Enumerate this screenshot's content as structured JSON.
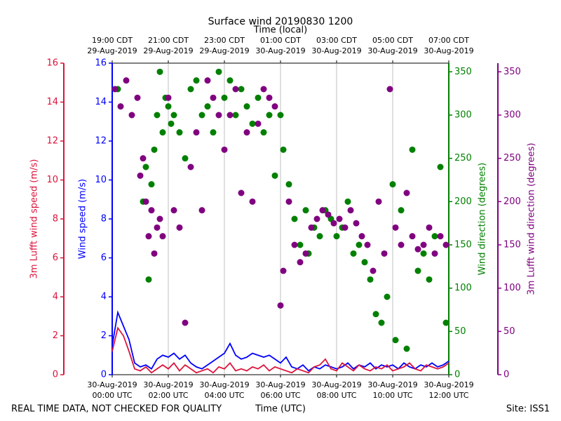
{
  "chart_data": {
    "type": "multi-axis-time",
    "title": "Surface wind 20190830 1200",
    "top_axis_label": "Time (local)",
    "x_label": "Time (UTC)",
    "footer_left": "REAL TIME DATA, NOT CHECKED FOR QUALITY",
    "footer_right": "Site: ISS1",
    "xlim": [
      0,
      12
    ],
    "grid": true,
    "xticks": [
      {
        "value": 0,
        "label": [
          "30-Aug-2019",
          "00:00 UTC"
        ]
      },
      {
        "value": 2,
        "label": [
          "30-Aug-2019",
          "02:00 UTC"
        ]
      },
      {
        "value": 4,
        "label": [
          "30-Aug-2019",
          "04:00 UTC"
        ]
      },
      {
        "value": 6,
        "label": [
          "30-Aug-2019",
          "06:00 UTC"
        ]
      },
      {
        "value": 8,
        "label": [
          "30-Aug-2019",
          "08:00 UTC"
        ]
      },
      {
        "value": 10,
        "label": [
          "30-Aug-2019",
          "10:00 UTC"
        ]
      },
      {
        "value": 12,
        "label": [
          "30-Aug-2019",
          "12:00 UTC"
        ]
      }
    ],
    "top_ticks": [
      {
        "value": 0,
        "label": [
          "19:00 CDT",
          "29-Aug-2019"
        ]
      },
      {
        "value": 2,
        "label": [
          "21:00 CDT",
          "29-Aug-2019"
        ]
      },
      {
        "value": 4,
        "label": [
          "23:00 CDT",
          "29-Aug-2019"
        ]
      },
      {
        "value": 6,
        "label": [
          "01:00 CDT",
          "30-Aug-2019"
        ]
      },
      {
        "value": 8,
        "label": [
          "03:00 CDT",
          "30-Aug-2019"
        ]
      },
      {
        "value": 10,
        "label": [
          "05:00 CDT",
          "30-Aug-2019"
        ]
      },
      {
        "value": 12,
        "label": [
          "07:00 CDT",
          "30-Aug-2019"
        ]
      }
    ],
    "axes": [
      {
        "label": "3m Lufft wind speed (m/s)",
        "color": "#dc143c",
        "lim": [
          0,
          16
        ],
        "ticks": [
          0,
          2,
          4,
          6,
          8,
          10,
          12,
          14,
          16
        ]
      },
      {
        "label": "Wind speed (m/s)",
        "color": "#0000ff",
        "lim": [
          0,
          16
        ],
        "ticks": [
          0,
          2,
          4,
          6,
          8,
          10,
          12,
          14,
          16
        ]
      },
      {
        "label": "Wind direction (degrees)",
        "color": "#008000",
        "lim": [
          0,
          360
        ],
        "ticks": [
          0,
          50,
          100,
          150,
          200,
          250,
          300,
          350
        ]
      },
      {
        "label": "3m Lufft wind direction (degrees)",
        "color": "#800080",
        "lim": [
          0,
          360
        ],
        "ticks": [
          0,
          50,
          100,
          150,
          200,
          250,
          300,
          350
        ]
      }
    ],
    "series": [
      {
        "axis": 2,
        "kind": "scatter",
        "color": "#008000",
        "x": [
          0.2,
          1.1,
          1.2,
          1.3,
          1.4,
          1.5,
          1.6,
          1.7,
          1.8,
          1.9,
          2.0,
          2.1,
          2.2,
          2.4,
          2.6,
          2.8,
          3.0,
          3.2,
          3.4,
          3.6,
          3.8,
          4.0,
          4.2,
          4.4,
          4.6,
          4.8,
          5.0,
          5.2,
          5.4,
          5.6,
          5.8,
          6.0,
          6.1,
          6.3,
          6.5,
          6.7,
          6.9,
          7.0,
          7.2,
          7.4,
          7.6,
          7.8,
          8.0,
          8.2,
          8.4,
          8.6,
          8.8,
          9.0,
          9.2,
          9.4,
          9.6,
          9.8,
          10.0,
          10.1,
          10.3,
          10.5,
          10.7,
          10.9,
          11.1,
          11.3,
          11.5,
          11.7,
          11.9
        ],
        "values": [
          330,
          200,
          240,
          110,
          220,
          260,
          300,
          350,
          280,
          320,
          310,
          290,
          300,
          280,
          250,
          330,
          340,
          300,
          310,
          280,
          350,
          320,
          340,
          300,
          330,
          310,
          290,
          320,
          280,
          300,
          230,
          300,
          260,
          220,
          180,
          150,
          190,
          140,
          170,
          160,
          190,
          180,
          160,
          170,
          200,
          140,
          150,
          130,
          110,
          70,
          60,
          90,
          220,
          40,
          190,
          30,
          260,
          120,
          140,
          110,
          160,
          240,
          60
        ]
      },
      {
        "axis": 3,
        "kind": "scatter",
        "color": "#800080",
        "x": [
          0.1,
          0.3,
          0.5,
          0.7,
          0.9,
          1.0,
          1.1,
          1.2,
          1.3,
          1.4,
          1.5,
          1.6,
          1.7,
          1.8,
          2.0,
          2.2,
          2.4,
          2.6,
          2.8,
          3.0,
          3.2,
          3.4,
          3.6,
          3.8,
          4.0,
          4.2,
          4.4,
          4.6,
          4.8,
          5.0,
          5.2,
          5.4,
          5.6,
          5.8,
          6.0,
          6.1,
          6.3,
          6.5,
          6.7,
          6.9,
          7.1,
          7.3,
          7.5,
          7.7,
          7.9,
          8.1,
          8.3,
          8.5,
          8.7,
          8.9,
          9.1,
          9.3,
          9.5,
          9.7,
          9.9,
          10.1,
          10.3,
          10.5,
          10.7,
          10.9,
          11.1,
          11.3,
          11.5,
          11.7,
          11.9
        ],
        "values": [
          330,
          310,
          340,
          300,
          320,
          230,
          250,
          200,
          160,
          190,
          140,
          170,
          180,
          160,
          320,
          190,
          170,
          60,
          240,
          280,
          190,
          340,
          320,
          300,
          260,
          300,
          330,
          210,
          280,
          200,
          290,
          330,
          320,
          310,
          80,
          120,
          200,
          150,
          130,
          140,
          170,
          180,
          190,
          185,
          175,
          180,
          170,
          190,
          175,
          160,
          150,
          120,
          200,
          140,
          330,
          170,
          150,
          210,
          160,
          145,
          150,
          170,
          140,
          160,
          150
        ]
      },
      {
        "axis": 1,
        "kind": "line",
        "color": "#0000ff",
        "x": [
          0,
          0.2,
          0.4,
          0.6,
          0.8,
          1.0,
          1.2,
          1.4,
          1.6,
          1.8,
          2.0,
          2.2,
          2.4,
          2.6,
          2.8,
          3.0,
          3.2,
          3.4,
          3.6,
          3.8,
          4.0,
          4.2,
          4.4,
          4.6,
          4.8,
          5.0,
          5.2,
          5.4,
          5.6,
          5.8,
          6.0,
          6.2,
          6.4,
          6.6,
          6.8,
          7.0,
          7.2,
          7.4,
          7.6,
          7.8,
          8.0,
          8.2,
          8.4,
          8.6,
          8.8,
          9.0,
          9.2,
          9.4,
          9.6,
          9.8,
          10.0,
          10.2,
          10.4,
          10.6,
          10.8,
          11.0,
          11.2,
          11.4,
          11.6,
          11.8,
          12.0
        ],
        "values": [
          1.5,
          3.2,
          2.5,
          1.8,
          0.6,
          0.4,
          0.5,
          0.3,
          0.8,
          1.0,
          0.9,
          1.1,
          0.8,
          1.0,
          0.6,
          0.4,
          0.3,
          0.5,
          0.7,
          0.9,
          1.1,
          1.6,
          1.0,
          0.8,
          0.9,
          1.1,
          1.0,
          0.9,
          1.0,
          0.8,
          0.6,
          0.9,
          0.4,
          0.3,
          0.5,
          0.2,
          0.4,
          0.3,
          0.5,
          0.4,
          0.3,
          0.4,
          0.6,
          0.3,
          0.5,
          0.4,
          0.6,
          0.3,
          0.5,
          0.4,
          0.5,
          0.3,
          0.6,
          0.4,
          0.3,
          0.5,
          0.4,
          0.6,
          0.4,
          0.5,
          0.7
        ]
      },
      {
        "axis": 0,
        "kind": "line",
        "color": "#dc143c",
        "x": [
          0,
          0.2,
          0.4,
          0.6,
          0.8,
          1.0,
          1.2,
          1.4,
          1.6,
          1.8,
          2.0,
          2.2,
          2.4,
          2.6,
          2.8,
          3.0,
          3.2,
          3.4,
          3.6,
          3.8,
          4.0,
          4.2,
          4.4,
          4.6,
          4.8,
          5.0,
          5.2,
          5.4,
          5.6,
          5.8,
          6.0,
          6.2,
          6.4,
          6.6,
          6.8,
          7.0,
          7.2,
          7.4,
          7.6,
          7.8,
          8.0,
          8.2,
          8.4,
          8.6,
          8.8,
          9.0,
          9.2,
          9.4,
          9.6,
          9.8,
          10.0,
          10.2,
          10.4,
          10.6,
          10.8,
          11.0,
          11.2,
          11.4,
          11.6,
          11.8,
          12.0
        ],
        "values": [
          1.2,
          2.4,
          2.0,
          1.2,
          0.3,
          0.2,
          0.4,
          0.1,
          0.3,
          0.5,
          0.3,
          0.6,
          0.2,
          0.5,
          0.3,
          0.1,
          0.2,
          0.3,
          0.1,
          0.4,
          0.3,
          0.6,
          0.2,
          0.3,
          0.2,
          0.4,
          0.3,
          0.5,
          0.2,
          0.4,
          0.3,
          0.2,
          0.1,
          0.3,
          0.2,
          0.1,
          0.4,
          0.5,
          0.8,
          0.3,
          0.2,
          0.6,
          0.4,
          0.2,
          0.5,
          0.3,
          0.2,
          0.4,
          0.3,
          0.5,
          0.2,
          0.3,
          0.4,
          0.6,
          0.3,
          0.2,
          0.5,
          0.4,
          0.3,
          0.4,
          0.6
        ]
      }
    ]
  }
}
